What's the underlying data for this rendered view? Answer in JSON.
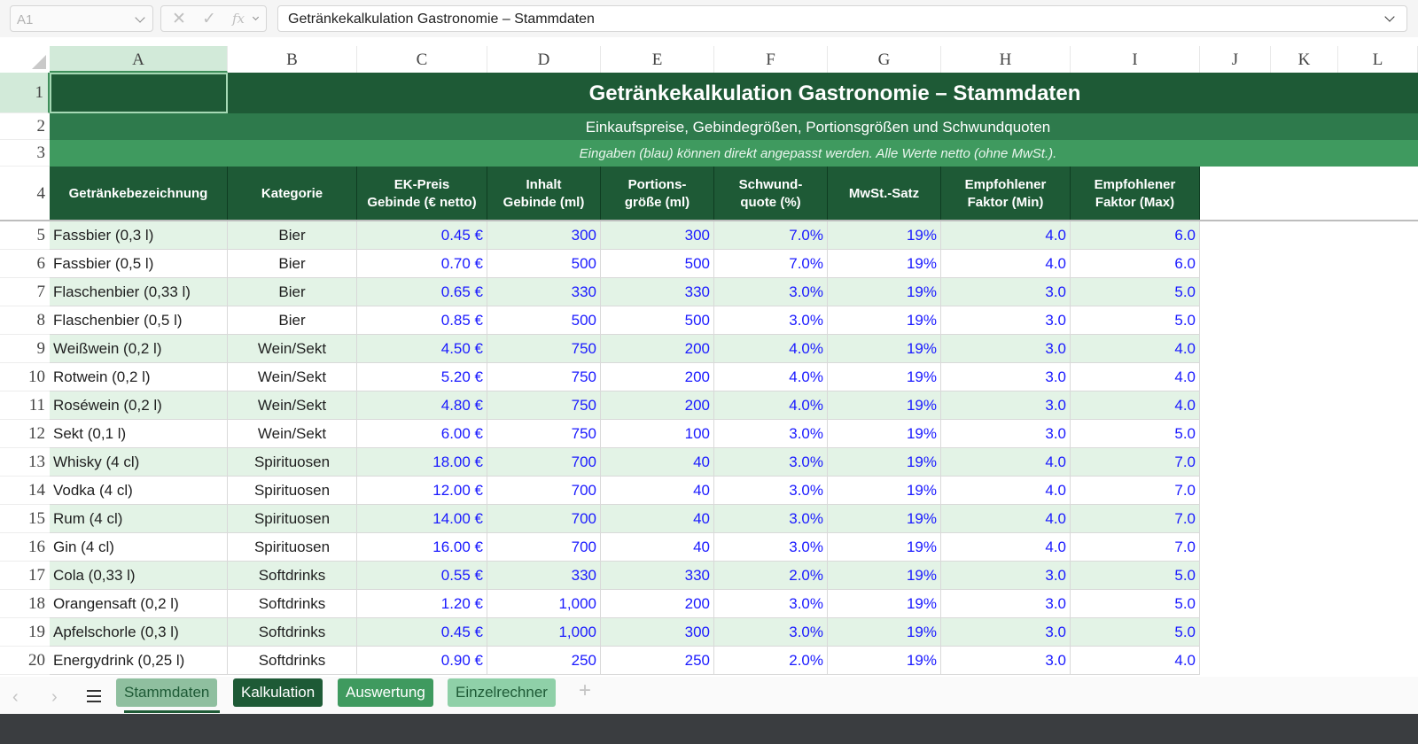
{
  "formula_bar": {
    "cell_ref": "A1",
    "formula": "Getränkekalkulation Gastronomie – Stammdaten"
  },
  "columns": [
    "A",
    "B",
    "C",
    "D",
    "E",
    "F",
    "G",
    "H",
    "I",
    "J",
    "K",
    "L"
  ],
  "rows": [
    "1",
    "2",
    "3",
    "4",
    "5",
    "6",
    "7",
    "8",
    "9",
    "10",
    "11",
    "12",
    "13",
    "14",
    "15",
    "16",
    "17",
    "18",
    "19",
    "20"
  ],
  "sheet": {
    "title": "Getränkekalkulation Gastronomie – Stammdaten",
    "subtitle": "Einkaufspreise, Gebindegrößen, Portionsgrößen und Schwundquoten",
    "note": "Eingaben (blau) können direkt angepasst werden. Alle Werte netto (ohne MwSt.).",
    "headers": [
      "Getränkebezeichnung",
      "Kategorie",
      "EK-Preis\nGebinde (€ netto)",
      "Inhalt\nGebinde (ml)",
      "Portions-\ngröße (ml)",
      "Schwund-\nquote (%)",
      "MwSt.-Satz",
      "Empfohlener\nFaktor (Min)",
      "Empfohlener\nFaktor (Max)"
    ],
    "data": [
      [
        "Fassbier (0,3 l)",
        "Bier",
        "0.45 €",
        "300",
        "300",
        "7.0%",
        "19%",
        "4.0",
        "6.0"
      ],
      [
        "Fassbier (0,5 l)",
        "Bier",
        "0.70 €",
        "500",
        "500",
        "7.0%",
        "19%",
        "4.0",
        "6.0"
      ],
      [
        "Flaschenbier (0,33 l)",
        "Bier",
        "0.65 €",
        "330",
        "330",
        "3.0%",
        "19%",
        "3.0",
        "5.0"
      ],
      [
        "Flaschenbier (0,5 l)",
        "Bier",
        "0.85 €",
        "500",
        "500",
        "3.0%",
        "19%",
        "3.0",
        "5.0"
      ],
      [
        "Weißwein (0,2 l)",
        "Wein/Sekt",
        "4.50 €",
        "750",
        "200",
        "4.0%",
        "19%",
        "3.0",
        "4.0"
      ],
      [
        "Rotwein (0,2 l)",
        "Wein/Sekt",
        "5.20 €",
        "750",
        "200",
        "4.0%",
        "19%",
        "3.0",
        "4.0"
      ],
      [
        "Roséwein (0,2 l)",
        "Wein/Sekt",
        "4.80 €",
        "750",
        "200",
        "4.0%",
        "19%",
        "3.0",
        "4.0"
      ],
      [
        "Sekt (0,1 l)",
        "Wein/Sekt",
        "6.00 €",
        "750",
        "100",
        "3.0%",
        "19%",
        "3.0",
        "5.0"
      ],
      [
        "Whisky (4 cl)",
        "Spirituosen",
        "18.00 €",
        "700",
        "40",
        "3.0%",
        "19%",
        "4.0",
        "7.0"
      ],
      [
        "Vodka (4 cl)",
        "Spirituosen",
        "12.00 €",
        "700",
        "40",
        "3.0%",
        "19%",
        "4.0",
        "7.0"
      ],
      [
        "Rum (4 cl)",
        "Spirituosen",
        "14.00 €",
        "700",
        "40",
        "3.0%",
        "19%",
        "4.0",
        "7.0"
      ],
      [
        "Gin (4 cl)",
        "Spirituosen",
        "16.00 €",
        "700",
        "40",
        "3.0%",
        "19%",
        "4.0",
        "7.0"
      ],
      [
        "Cola (0,33 l)",
        "Softdrinks",
        "0.55 €",
        "330",
        "330",
        "2.0%",
        "19%",
        "3.0",
        "5.0"
      ],
      [
        "Orangensaft (0,2 l)",
        "Softdrinks",
        "1.20 €",
        "1,000",
        "200",
        "3.0%",
        "19%",
        "3.0",
        "5.0"
      ],
      [
        "Apfelschorle (0,3 l)",
        "Softdrinks",
        "0.45 €",
        "1,000",
        "300",
        "3.0%",
        "19%",
        "3.0",
        "5.0"
      ],
      [
        "Energydrink (0,25 l)",
        "Softdrinks",
        "0.90 €",
        "250",
        "250",
        "2.0%",
        "19%",
        "3.0",
        "4.0"
      ]
    ]
  },
  "tabs": [
    {
      "label": "Stammdaten",
      "active": true,
      "bg": "#8fbf9f",
      "fg": "#1e5a36"
    },
    {
      "label": "Kalkulation",
      "active": false,
      "bg": "#1e5a36",
      "fg": "#ffffff"
    },
    {
      "label": "Auswertung",
      "active": false,
      "bg": "#3f9a5f",
      "fg": "#ffffff"
    },
    {
      "label": "Einzelrechner",
      "active": false,
      "bg": "#8fd0a8",
      "fg": "#1e5a36"
    }
  ],
  "colors": {
    "header_dark": "#1e5a36",
    "subtitle_band": "#2e7a4c",
    "note_band": "#3f9a5f",
    "row_alt": "#e3f3e6",
    "input_blue": "#1a1aff"
  }
}
